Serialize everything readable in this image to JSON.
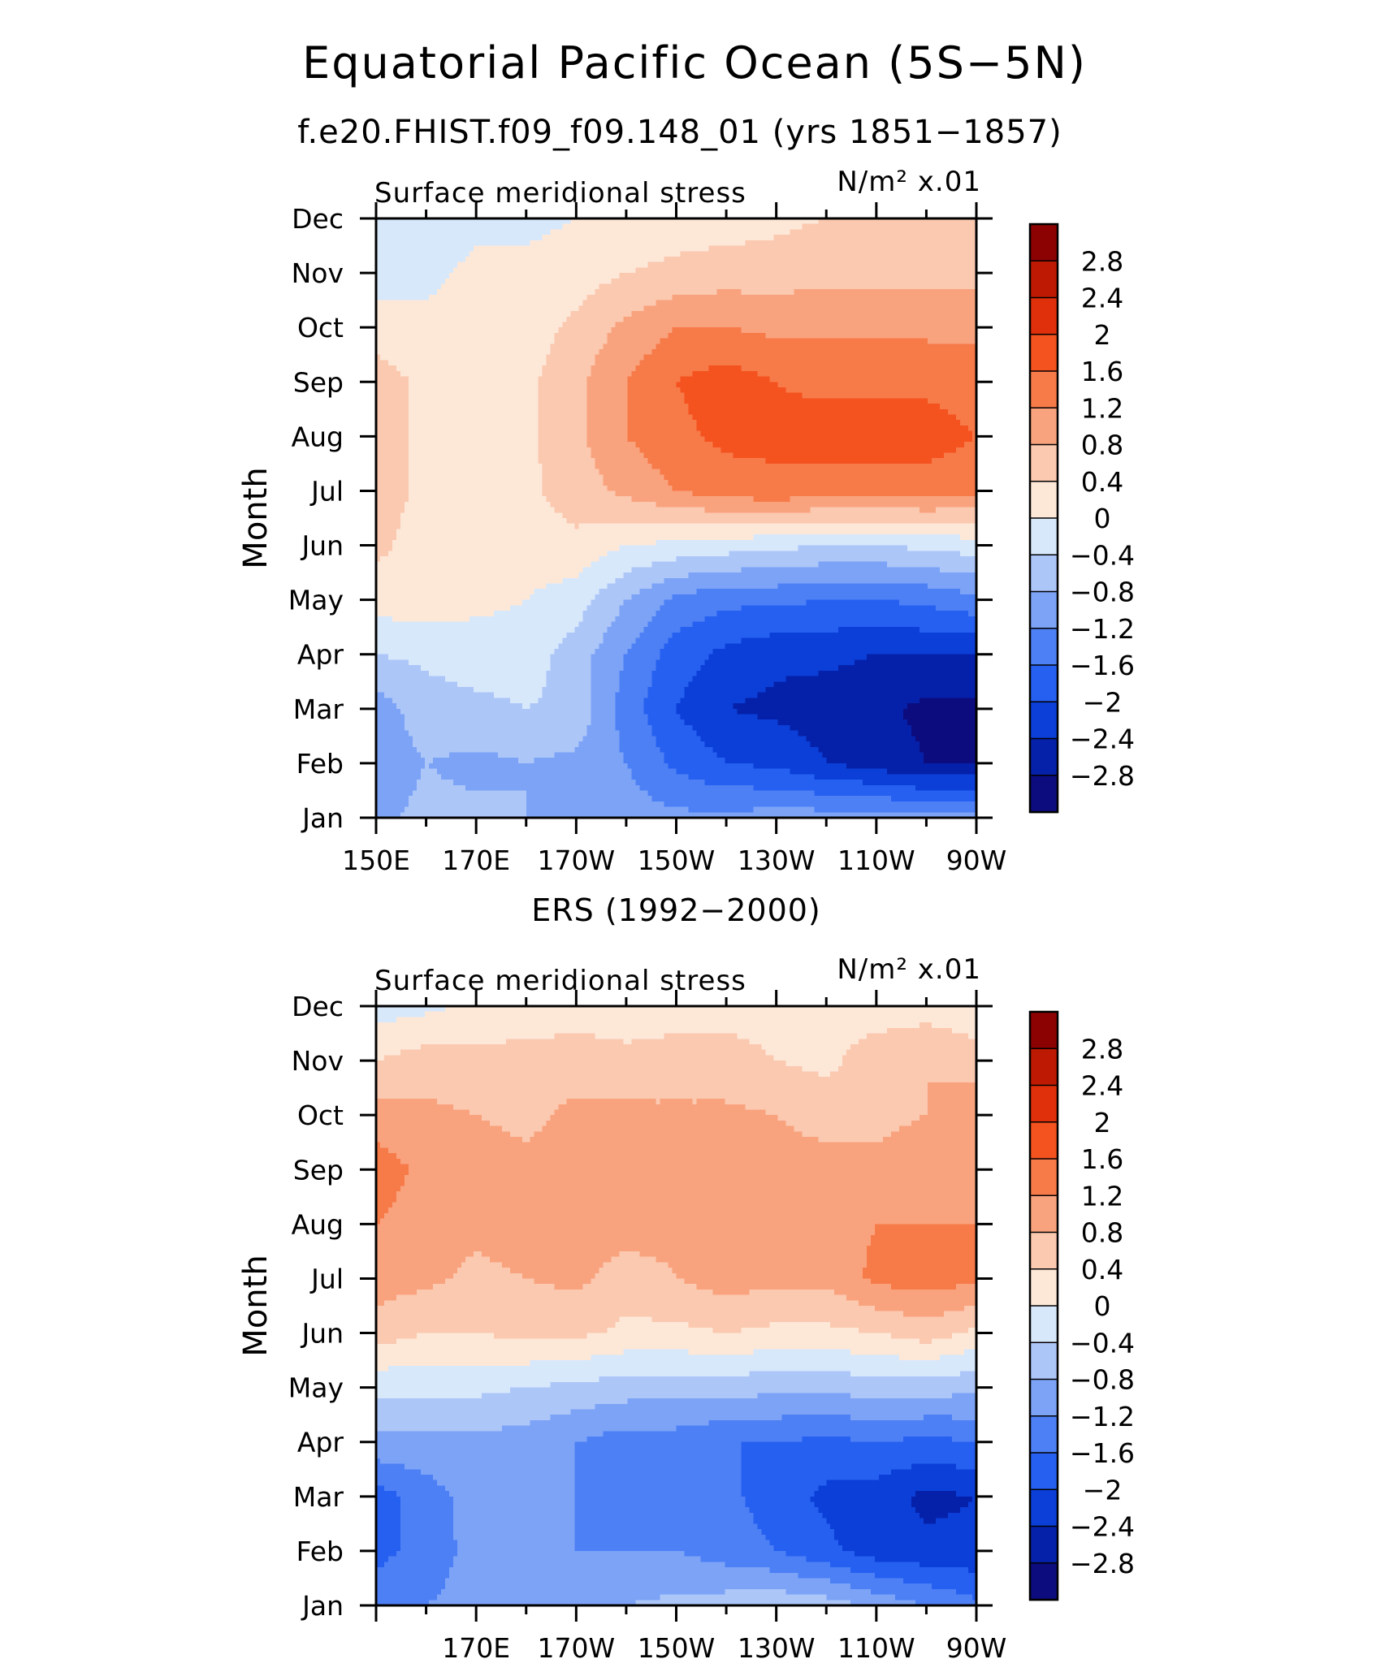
{
  "title": "Equatorial Pacific Ocean (5S−5N)",
  "subtitle": "f.e20.FHIST.f09_f09.148_01 (yrs 1851−1857)",
  "colors": {
    "levels": [
      "#0c0c7e",
      "#0621a9",
      "#0b3fd8",
      "#2660f0",
      "#4d80f5",
      "#7ca3f6",
      "#adc6f8",
      "#d7e8fb",
      "#fde8d8",
      "#fbc8b0",
      "#f9a37e",
      "#f77a49",
      "#f4521e",
      "#e0300b",
      "#be1a03",
      "#8c0202"
    ]
  },
  "colorbar": {
    "labels": [
      "2.8",
      "2.4",
      "2",
      "1.6",
      "1.2",
      "0.8",
      "0.4",
      "0",
      "−0.4",
      "−0.8",
      "−1.2",
      "−1.6",
      "−2",
      "−2.4",
      "−2.8"
    ]
  },
  "chart_data": [
    {
      "type": "heatmap",
      "title": "",
      "panel_label": "",
      "left_label": "Surface meridional stress",
      "units_label": "N/m² x.01",
      "xlabel": "",
      "ylabel": "Month",
      "x_tick_labels": [
        "150E",
        "170E",
        "170W",
        "150W",
        "130W",
        "110W",
        "90W"
      ],
      "y_tick_labels": [
        "Jan",
        "Feb",
        "Mar",
        "Apr",
        "May",
        "Jun",
        "Jul",
        "Aug",
        "Sep",
        "Oct",
        "Nov",
        "Dec"
      ],
      "xlim": [
        150,
        270
      ],
      "ylim": [
        1,
        12
      ],
      "levels": [
        -2.8,
        -2.4,
        -2.0,
        -1.6,
        -1.2,
        -0.8,
        -0.4,
        0,
        0.4,
        0.8,
        1.2,
        1.6,
        2.0,
        2.4,
        2.8
      ],
      "x": [
        150,
        160,
        170,
        180,
        190,
        200,
        210,
        220,
        230,
        240,
        250,
        260,
        270
      ],
      "y": [
        "Jan",
        "Feb",
        "Mar",
        "Apr",
        "May",
        "Jun",
        "Jul",
        "Aug",
        "Sep",
        "Oct",
        "Nov",
        "Dec"
      ],
      "values": [
        [
          -0.9,
          -0.7,
          -0.7,
          -0.8,
          -0.9,
          -1.0,
          -1.1,
          -1.1,
          -1.0,
          -1.0,
          -1.0,
          -1.1,
          -1.1
        ],
        [
          -1.0,
          -0.8,
          -0.9,
          -0.8,
          -0.9,
          -1.2,
          -1.7,
          -2.0,
          -2.1,
          -2.4,
          -2.6,
          -2.8,
          -2.8
        ],
        [
          -1.0,
          -0.6,
          -0.5,
          -0.4,
          -0.5,
          -1.4,
          -2.0,
          -2.4,
          -2.5,
          -2.6,
          -2.7,
          -2.9,
          -2.9
        ],
        [
          -0.4,
          -0.3,
          -0.2,
          -0.2,
          -0.6,
          -1.2,
          -1.8,
          -2.1,
          -2.3,
          -2.3,
          -2.4,
          -2.4,
          -2.4
        ],
        [
          0.2,
          0.2,
          0.1,
          0.0,
          -0.2,
          -0.8,
          -1.3,
          -1.5,
          -1.5,
          -1.6,
          -1.6,
          -1.5,
          -1.3
        ],
        [
          0.5,
          0.2,
          0.2,
          0.2,
          0.3,
          0.0,
          -0.1,
          -0.2,
          -0.3,
          -0.4,
          -0.4,
          -0.3,
          -0.2
        ],
        [
          0.6,
          0.3,
          0.2,
          0.3,
          0.6,
          0.9,
          1.2,
          1.4,
          1.5,
          1.4,
          1.4,
          1.4,
          1.3
        ],
        [
          0.6,
          0.3,
          0.2,
          0.3,
          0.7,
          1.2,
          1.5,
          1.7,
          1.7,
          1.8,
          1.8,
          1.8,
          1.6
        ],
        [
          0.6,
          0.3,
          0.2,
          0.3,
          0.7,
          1.2,
          1.6,
          1.8,
          1.6,
          1.5,
          1.5,
          1.5,
          1.4
        ],
        [
          0.2,
          0.1,
          0.1,
          0.2,
          0.5,
          0.9,
          1.2,
          1.2,
          1.1,
          1.1,
          1.1,
          1.1,
          1.1
        ],
        [
          -0.2,
          -0.1,
          0.1,
          0.1,
          0.2,
          0.4,
          0.5,
          0.6,
          0.6,
          0.7,
          0.7,
          0.7,
          0.7
        ],
        [
          -0.4,
          -0.3,
          -0.1,
          -0.1,
          0.0,
          0.1,
          0.2,
          0.2,
          0.3,
          0.4,
          0.4,
          0.4,
          0.4
        ]
      ]
    },
    {
      "type": "heatmap",
      "title": "ERS (1992−2000)",
      "panel_label": "ERS (1992−2000)",
      "left_label": "Surface meridional stress",
      "units_label": "N/m² x.01",
      "xlabel": "",
      "ylabel": "Month",
      "x_tick_labels": [
        "170E",
        "170W",
        "150W",
        "130W",
        "110W",
        "90W"
      ],
      "y_tick_labels": [
        "Jan",
        "Feb",
        "Mar",
        "Apr",
        "May",
        "Jun",
        "Jul",
        "Aug",
        "Sep",
        "Oct",
        "Nov",
        "Dec"
      ],
      "xlim": [
        150,
        270
      ],
      "ylim": [
        1,
        12
      ],
      "levels": [
        -2.8,
        -2.4,
        -2.0,
        -1.6,
        -1.2,
        -0.8,
        -0.4,
        0,
        0.4,
        0.8,
        1.2,
        1.6,
        2.0,
        2.4,
        2.8
      ],
      "x": [
        150,
        160,
        170,
        180,
        190,
        200,
        210,
        220,
        230,
        240,
        250,
        260,
        270
      ],
      "y": [
        "Jan",
        "Feb",
        "Mar",
        "Apr",
        "May",
        "Jun",
        "Jul",
        "Aug",
        "Sep",
        "Oct",
        "Nov",
        "Dec"
      ],
      "values": [
        [
          -1.4,
          -1.2,
          -1.0,
          -0.9,
          -0.8,
          -0.8,
          -0.7,
          -0.6,
          -0.5,
          -0.6,
          -0.9,
          -1.2,
          -1.5
        ],
        [
          -1.7,
          -1.5,
          -1.0,
          -1.1,
          -1.2,
          -1.2,
          -1.2,
          -1.4,
          -1.6,
          -1.9,
          -2.2,
          -2.3,
          -2.3
        ],
        [
          -1.8,
          -1.4,
          -1.0,
          -1.1,
          -1.2,
          -1.3,
          -1.3,
          -1.5,
          -1.8,
          -2.1,
          -2.2,
          -2.5,
          -2.4
        ],
        [
          -0.9,
          -0.9,
          -0.9,
          -1.0,
          -1.2,
          -1.4,
          -1.4,
          -1.6,
          -1.6,
          -1.7,
          -1.6,
          -1.7,
          -1.6
        ],
        [
          -0.3,
          -0.3,
          -0.3,
          -0.4,
          -0.5,
          -0.6,
          -0.6,
          -0.6,
          -0.7,
          -0.7,
          -0.6,
          -0.6,
          -0.7
        ],
        [
          0.6,
          0.4,
          0.4,
          0.5,
          0.5,
          0.3,
          0.3,
          0.4,
          0.3,
          0.3,
          0.4,
          0.6,
          0.3
        ],
        [
          1.0,
          0.9,
          0.7,
          0.8,
          0.9,
          0.6,
          0.8,
          1.0,
          0.9,
          0.9,
          1.3,
          1.4,
          1.3
        ],
        [
          1.2,
          1.0,
          0.9,
          1.0,
          1.0,
          1.0,
          0.9,
          1.1,
          1.0,
          1.0,
          1.2,
          1.2,
          1.2
        ],
        [
          1.4,
          1.1,
          1.0,
          0.9,
          1.0,
          1.0,
          1.0,
          1.1,
          1.0,
          1.0,
          0.9,
          1.0,
          1.2
        ],
        [
          1.0,
          0.9,
          0.8,
          0.7,
          0.9,
          0.9,
          0.9,
          0.9,
          0.8,
          0.6,
          0.7,
          0.8,
          1.1
        ],
        [
          0.4,
          0.6,
          0.5,
          0.6,
          0.6,
          0.5,
          0.5,
          0.5,
          0.4,
          0.3,
          0.6,
          0.8,
          0.6
        ],
        [
          -0.2,
          -0.1,
          0.1,
          0.1,
          0.2,
          0.2,
          0.3,
          0.3,
          0.3,
          0.3,
          0.2,
          0.2,
          0.1
        ]
      ]
    }
  ]
}
